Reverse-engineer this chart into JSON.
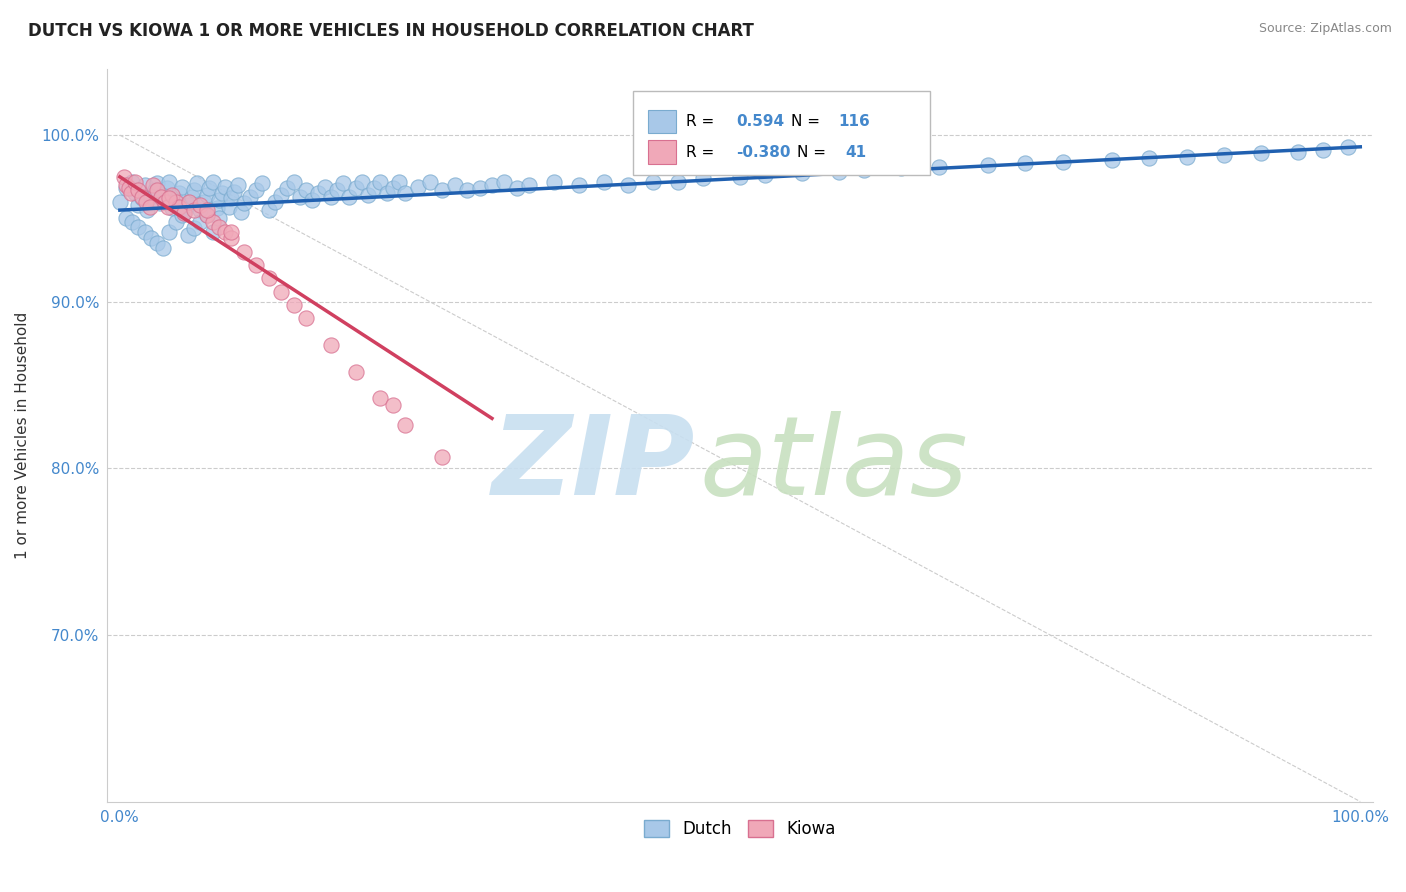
{
  "title": "DUTCH VS KIOWA 1 OR MORE VEHICLES IN HOUSEHOLD CORRELATION CHART",
  "source": "Source: ZipAtlas.com",
  "ylabel": "1 or more Vehicles in Household",
  "xlim": [
    -0.01,
    1.01
  ],
  "ylim": [
    0.6,
    1.04
  ],
  "xtick_positions": [
    0.0,
    1.0
  ],
  "xtick_labels": [
    "0.0%",
    "100.0%"
  ],
  "ytick_positions": [
    0.7,
    0.8,
    0.9,
    1.0
  ],
  "ytick_labels": [
    "70.0%",
    "80.0%",
    "90.0%",
    "100.0%"
  ],
  "dutch_color": "#a8c8e8",
  "dutch_edge_color": "#7aabcf",
  "dutch_line_color": "#2060b0",
  "kiowa_color": "#f0a8b8",
  "kiowa_edge_color": "#d87090",
  "kiowa_line_color": "#d04060",
  "background_color": "#ffffff",
  "grid_color": "#cccccc",
  "diag_line_color": "#cccccc",
  "tick_color": "#4488cc",
  "title_color": "#222222",
  "source_color": "#888888",
  "ylabel_color": "#333333",
  "legend_R_color": "#000000",
  "legend_val_color": "#4488cc",
  "legend_dutch_R_val": "0.594",
  "legend_dutch_N_val": "116",
  "legend_kiowa_R_val": "-0.380",
  "legend_kiowa_N_val": "41",
  "watermark_zip_color": "#c8dff0",
  "watermark_atlas_color": "#c8e0c0",
  "dutch_scatter_x": [
    0.0,
    0.005,
    0.01,
    0.012,
    0.015,
    0.018,
    0.02,
    0.022,
    0.025,
    0.028,
    0.03,
    0.032,
    0.035,
    0.038,
    0.04,
    0.042,
    0.045,
    0.048,
    0.05,
    0.052,
    0.055,
    0.058,
    0.06,
    0.062,
    0.065,
    0.068,
    0.07,
    0.072,
    0.075,
    0.078,
    0.08,
    0.082,
    0.085,
    0.088,
    0.09,
    0.092,
    0.095,
    0.098,
    0.1,
    0.105,
    0.11,
    0.115,
    0.12,
    0.125,
    0.13,
    0.135,
    0.14,
    0.145,
    0.15,
    0.155,
    0.16,
    0.165,
    0.17,
    0.175,
    0.18,
    0.185,
    0.19,
    0.195,
    0.2,
    0.205,
    0.21,
    0.215,
    0.22,
    0.225,
    0.23,
    0.24,
    0.25,
    0.26,
    0.27,
    0.28,
    0.29,
    0.3,
    0.31,
    0.32,
    0.33,
    0.35,
    0.37,
    0.39,
    0.41,
    0.43,
    0.45,
    0.47,
    0.5,
    0.52,
    0.55,
    0.58,
    0.6,
    0.63,
    0.66,
    0.7,
    0.73,
    0.76,
    0.8,
    0.83,
    0.86,
    0.89,
    0.92,
    0.95,
    0.97,
    0.99,
    0.005,
    0.01,
    0.015,
    0.02,
    0.025,
    0.03,
    0.035,
    0.04,
    0.045,
    0.05,
    0.055,
    0.06,
    0.065,
    0.07,
    0.075,
    0.08
  ],
  "dutch_scatter_y": [
    0.96,
    0.968,
    0.972,
    0.965,
    0.958,
    0.962,
    0.97,
    0.955,
    0.963,
    0.967,
    0.971,
    0.959,
    0.964,
    0.968,
    0.972,
    0.956,
    0.961,
    0.965,
    0.969,
    0.953,
    0.958,
    0.963,
    0.967,
    0.971,
    0.955,
    0.96,
    0.964,
    0.968,
    0.972,
    0.956,
    0.961,
    0.965,
    0.969,
    0.957,
    0.962,
    0.966,
    0.97,
    0.954,
    0.959,
    0.963,
    0.967,
    0.971,
    0.955,
    0.96,
    0.964,
    0.968,
    0.972,
    0.963,
    0.967,
    0.961,
    0.965,
    0.969,
    0.963,
    0.967,
    0.971,
    0.963,
    0.968,
    0.972,
    0.964,
    0.968,
    0.972,
    0.965,
    0.968,
    0.972,
    0.965,
    0.969,
    0.972,
    0.967,
    0.97,
    0.967,
    0.968,
    0.97,
    0.972,
    0.968,
    0.97,
    0.972,
    0.97,
    0.972,
    0.97,
    0.972,
    0.972,
    0.974,
    0.975,
    0.976,
    0.977,
    0.978,
    0.979,
    0.98,
    0.981,
    0.982,
    0.983,
    0.984,
    0.985,
    0.986,
    0.987,
    0.988,
    0.989,
    0.99,
    0.991,
    0.993,
    0.95,
    0.948,
    0.945,
    0.942,
    0.938,
    0.935,
    0.932,
    0.942,
    0.948,
    0.952,
    0.94,
    0.944,
    0.948,
    0.952,
    0.942,
    0.95
  ],
  "kiowa_scatter_x": [
    0.003,
    0.005,
    0.007,
    0.009,
    0.012,
    0.015,
    0.018,
    0.021,
    0.024,
    0.027,
    0.03,
    0.033,
    0.036,
    0.039,
    0.042,
    0.045,
    0.048,
    0.052,
    0.056,
    0.06,
    0.065,
    0.07,
    0.075,
    0.08,
    0.085,
    0.09,
    0.1,
    0.11,
    0.12,
    0.13,
    0.14,
    0.15,
    0.17,
    0.19,
    0.21,
    0.23,
    0.26,
    0.22,
    0.09,
    0.07,
    0.04
  ],
  "kiowa_scatter_y": [
    0.975,
    0.97,
    0.968,
    0.965,
    0.972,
    0.967,
    0.963,
    0.96,
    0.957,
    0.97,
    0.967,
    0.963,
    0.96,
    0.957,
    0.964,
    0.96,
    0.957,
    0.953,
    0.96,
    0.955,
    0.958,
    0.952,
    0.948,
    0.945,
    0.942,
    0.938,
    0.93,
    0.922,
    0.914,
    0.906,
    0.898,
    0.89,
    0.874,
    0.858,
    0.842,
    0.826,
    0.807,
    0.838,
    0.942,
    0.955,
    0.962
  ],
  "dutch_line_x": [
    0.0,
    1.0
  ],
  "dutch_line_y": [
    0.955,
    0.993
  ],
  "kiowa_line_x": [
    0.0,
    0.3
  ],
  "kiowa_line_y": [
    0.975,
    0.83
  ]
}
